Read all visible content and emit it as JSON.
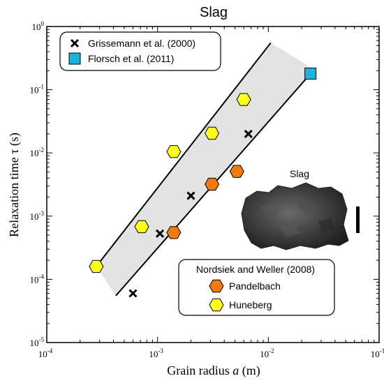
{
  "chart_data": {
    "type": "scatter",
    "title": "Slag",
    "xlabel": "Grain radius",
    "xlabel_var": "a",
    "xlabel_unit": "(m)",
    "ylabel": "Relaxation time τ (s)",
    "xscale": "log",
    "yscale": "log",
    "xlim": [
      0.0001,
      0.1
    ],
    "ylim": [
      1e-05,
      1
    ],
    "x_ticks": [
      {
        "base": "10",
        "exp": "-4",
        "value": 0.0001
      },
      {
        "base": "10",
        "exp": "-3",
        "value": 0.001
      },
      {
        "base": "10",
        "exp": "-2",
        "value": 0.01
      },
      {
        "base": "10",
        "exp": "-1",
        "value": 0.1
      }
    ],
    "y_ticks": [
      {
        "base": "10",
        "exp": "-5",
        "value": 1e-05
      },
      {
        "base": "10",
        "exp": "-4",
        "value": 0.0001
      },
      {
        "base": "10",
        "exp": "-3",
        "value": 0.001
      },
      {
        "base": "10",
        "exp": "-2",
        "value": 0.01
      },
      {
        "base": "10",
        "exp": "-1",
        "value": 0.1
      },
      {
        "base": "10",
        "exp": "0",
        "value": 1
      }
    ],
    "band": {
      "color": "#e3e3e3",
      "upper_line": [
        [
          0.00028,
          0.00016
        ],
        [
          0.0105,
          0.55
        ]
      ],
      "lower_line": [
        [
          0.00042,
          5.5e-05
        ],
        [
          0.026,
          0.21
        ]
      ]
    },
    "series": [
      {
        "name": "Grissemann et al. (2000)",
        "marker": "x",
        "color": "#000000",
        "points": [
          [
            0.0006,
            6e-05
          ],
          [
            0.00105,
            0.00053
          ],
          [
            0.002,
            0.0021
          ],
          [
            0.0066,
            0.02
          ]
        ]
      },
      {
        "name": "Florsch et al. (2011)",
        "marker": "square",
        "color": "#1cb4d8",
        "points": [
          [
            0.024,
            0.18
          ]
        ]
      },
      {
        "name": "Pandelbach",
        "marker": "hexagon",
        "color": "#f07a10",
        "points": [
          [
            0.0014,
            0.00055
          ],
          [
            0.0031,
            0.0032
          ],
          [
            0.0052,
            0.0051
          ]
        ]
      },
      {
        "name": "Huneberg",
        "marker": "hexagon",
        "color": "#ffff1a",
        "points": [
          [
            0.00028,
            0.00016
          ],
          [
            0.00072,
            0.00068
          ],
          [
            0.0014,
            0.0105
          ],
          [
            0.0031,
            0.0205
          ],
          [
            0.006,
            0.07
          ]
        ]
      }
    ],
    "legend_top": {
      "placement": "top-left",
      "entries": [
        "Grissemann et al. (2000)",
        "Florsch et al. (2011)"
      ]
    },
    "legend_bottom": {
      "placement": "bottom-right",
      "title": "Nordsiek and Weller (2008)",
      "entries": [
        "Pandelbach",
        "Huneberg"
      ]
    },
    "inset": {
      "label": "Slag",
      "description_icon": "slag-sample-photo"
    }
  }
}
